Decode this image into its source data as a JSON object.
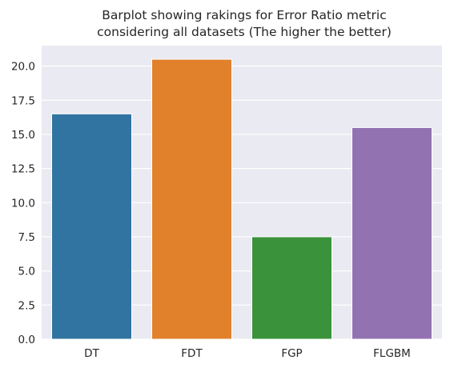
{
  "chart_data": {
    "type": "bar",
    "title": "Barplot showing rakings for Error Ratio metric",
    "subtitle": "considering all datasets (The higher the better)",
    "xlabel": "",
    "ylabel": "",
    "categories": [
      "DT",
      "FDT",
      "FGP",
      "FLGBM"
    ],
    "values": [
      16.5,
      20.5,
      7.5,
      15.5
    ],
    "colors": [
      "#3274a1",
      "#e1812c",
      "#3a923a",
      "#9372b2"
    ],
    "ylim": [
      0,
      21.5
    ],
    "yticks": [
      "0.0",
      "2.5",
      "5.0",
      "7.5",
      "10.0",
      "12.5",
      "15.0",
      "17.5",
      "20.0"
    ],
    "grid": true,
    "background": "#eaeaf2"
  }
}
